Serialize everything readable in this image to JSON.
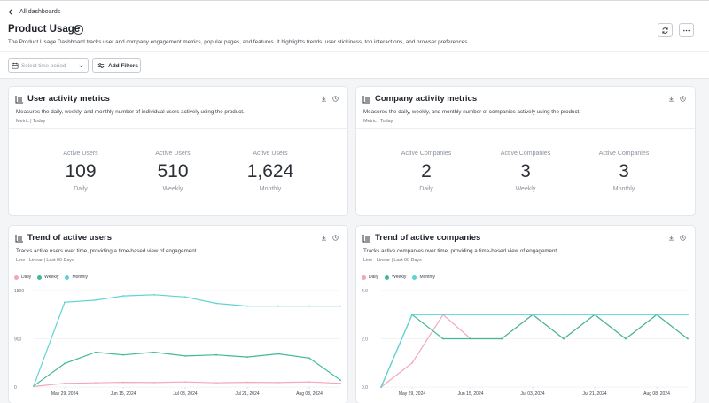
{
  "nav": {
    "back_label": "All dashboards"
  },
  "page": {
    "title": "Product Usage",
    "description": "The Product Usage Dashboard tracks user and company engagement metrics, popular pages, and features. It highlights trends, user stickiness, top interactions, and browser preferences."
  },
  "filters": {
    "period_placeholder": "Select time period",
    "add_filters_label": "Add Filters"
  },
  "cards": {
    "user_metrics": {
      "title": "User activity metrics",
      "subtitle": "Measures the daily, weekly, and monthly number of individual users actively using the product.",
      "meta": "Metric | Today",
      "metrics": [
        {
          "label": "Active Users",
          "value": "109",
          "period": "Daily"
        },
        {
          "label": "Active Users",
          "value": "510",
          "period": "Weekly"
        },
        {
          "label": "Active Users",
          "value": "1,624",
          "period": "Monthly"
        }
      ]
    },
    "company_metrics": {
      "title": "Company activity metrics",
      "subtitle": "Measures the daily, weekly, and monthly number of companies actively using the product.",
      "meta": "Metric | Today",
      "metrics": [
        {
          "label": "Active Companies",
          "value": "2",
          "period": "Daily"
        },
        {
          "label": "Active Companies",
          "value": "3",
          "period": "Weekly"
        },
        {
          "label": "Active Companies",
          "value": "3",
          "period": "Monthly"
        }
      ]
    },
    "user_trend": {
      "title": "Trend of active users",
      "subtitle": "Tracks active users over time, providing a time-based view of engagement.",
      "meta": "Line - Linear | Last 90 Days"
    },
    "company_trend": {
      "title": "Trend of active companies",
      "subtitle": "Tracks active companies over time, providing a time-based view of engagement.",
      "meta": "Line - Linear | Last 90 Days"
    }
  },
  "colors": {
    "daily": "#f4a7b9",
    "weekly": "#3fb99a",
    "monthly": "#5fd3d3"
  },
  "chart_data": [
    {
      "type": "line",
      "title": "Trend of active users",
      "x": [
        "2024-05-20",
        "2024-05-29",
        "2024-06-07",
        "2024-06-15",
        "2024-06-24",
        "2024-07-03",
        "2024-07-12",
        "2024-07-21",
        "2024-07-30",
        "2024-08-08",
        "2024-08-17"
      ],
      "xticks": [
        "May 29, 2024",
        "Jun 15, 2024",
        "Jul 03, 2024",
        "Jul 21, 2024",
        "Aug 08, 2024"
      ],
      "yticks": [
        "0",
        "900",
        "1800"
      ],
      "ylim": [
        0,
        1800
      ],
      "legend": "top-left",
      "series": [
        {
          "name": "Daily",
          "key": "daily",
          "values": [
            10,
            70,
            80,
            90,
            85,
            95,
            80,
            90,
            85,
            95,
            70
          ]
        },
        {
          "name": "Weekly",
          "key": "weekly",
          "values": [
            20,
            440,
            650,
            600,
            650,
            580,
            600,
            560,
            620,
            540,
            130
          ]
        },
        {
          "name": "Monthly",
          "key": "monthly",
          "values": [
            20,
            1580,
            1620,
            1700,
            1720,
            1680,
            1560,
            1510,
            1510,
            1510,
            1510
          ]
        }
      ]
    },
    {
      "type": "line",
      "title": "Trend of active companies",
      "x": [
        "2024-05-20",
        "2024-05-29",
        "2024-06-07",
        "2024-06-15",
        "2024-06-24",
        "2024-07-03",
        "2024-07-12",
        "2024-07-21",
        "2024-07-30",
        "2024-08-08",
        "2024-08-17"
      ],
      "xticks": [
        "May 29, 2024",
        "Jun 15, 2024",
        "Jul 03, 2024",
        "Jul 21, 2024",
        "Aug 08, 2024"
      ],
      "yticks": [
        "0.0",
        "2.0",
        "4.0"
      ],
      "ylim": [
        0,
        4
      ],
      "legend": "top-left",
      "series": [
        {
          "name": "Daily",
          "key": "daily",
          "values": [
            0,
            1,
            3,
            2,
            2,
            3,
            2,
            3,
            2,
            3,
            2
          ]
        },
        {
          "name": "Weekly",
          "key": "weekly",
          "values": [
            0,
            3,
            2,
            2,
            2,
            3,
            2,
            3,
            2,
            3,
            2
          ]
        },
        {
          "name": "Monthly",
          "key": "monthly",
          "values": [
            0,
            3,
            3,
            3,
            3,
            3,
            3,
            3,
            3,
            3,
            3
          ]
        }
      ]
    }
  ]
}
